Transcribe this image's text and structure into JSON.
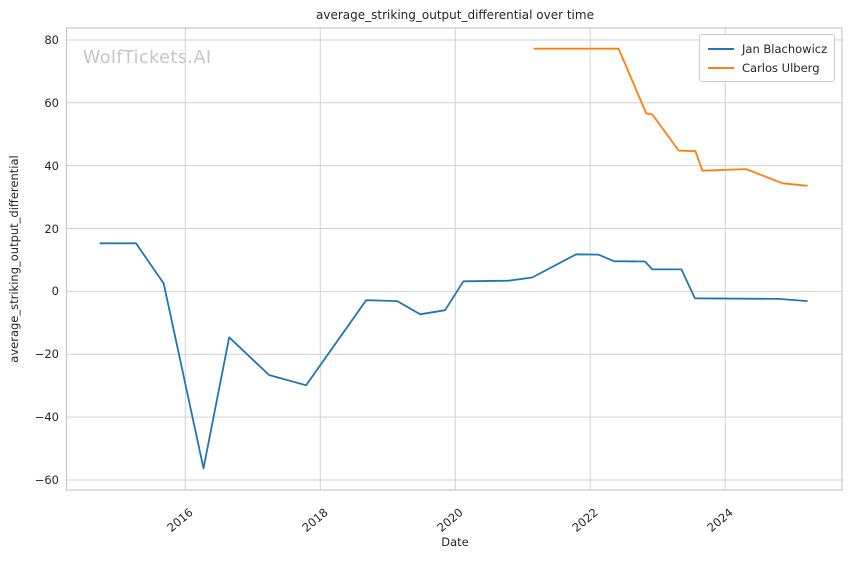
{
  "watermark": "WolfTickets.AI",
  "chart_data": {
    "type": "line",
    "title": "average_striking_output_differential over time",
    "xlabel": "Date",
    "ylabel": "average_striking_output_differential",
    "grid": true,
    "legend_position": "top-right",
    "background_color": "#ffffff",
    "grid_color": "#d2d2d2",
    "spine_color": "#c9c9c9",
    "text_color": "#262626",
    "watermark_color": "#c6c6c6",
    "x_range": [
      2014.24,
      2025.73
    ],
    "y_range": [
      -63.2,
      83.8
    ],
    "x_ticks": [
      {
        "value": 2016,
        "label": "2016"
      },
      {
        "value": 2018,
        "label": "2018"
      },
      {
        "value": 2020,
        "label": "2020"
      },
      {
        "value": 2022,
        "label": "2022"
      },
      {
        "value": 2024,
        "label": "2024"
      }
    ],
    "y_ticks": [
      {
        "value": 80,
        "label": "80"
      },
      {
        "value": 60,
        "label": "60"
      },
      {
        "value": 40,
        "label": "40"
      },
      {
        "value": 20,
        "label": "20"
      },
      {
        "value": 0,
        "label": "0"
      },
      {
        "value": -20,
        "label": "−20"
      },
      {
        "value": -40,
        "label": "−40"
      },
      {
        "value": -60,
        "label": "−60"
      }
    ],
    "series": [
      {
        "name": "Jan Blachowicz",
        "color": "#1f77b4",
        "points": [
          [
            2014.73,
            15.3
          ],
          [
            2015.27,
            15.3
          ],
          [
            2015.68,
            2.5
          ],
          [
            2016.27,
            -56.3
          ],
          [
            2016.65,
            -14.6
          ],
          [
            2017.24,
            -26.6
          ],
          [
            2017.79,
            -29.9
          ],
          [
            2018.68,
            -2.8
          ],
          [
            2019.14,
            -3.1
          ],
          [
            2019.48,
            -7.3
          ],
          [
            2019.85,
            -6.0
          ],
          [
            2020.12,
            3.2
          ],
          [
            2020.79,
            3.4
          ],
          [
            2021.14,
            4.4
          ],
          [
            2021.79,
            11.8
          ],
          [
            2022.12,
            11.7
          ],
          [
            2022.35,
            9.6
          ],
          [
            2022.81,
            9.5
          ],
          [
            2022.92,
            7.0
          ],
          [
            2023.35,
            7.0
          ],
          [
            2023.55,
            -2.2
          ],
          [
            2024.79,
            -2.4
          ],
          [
            2025.22,
            -3.1
          ]
        ]
      },
      {
        "name": "Carlos Ulberg",
        "color": "#ff7f0e",
        "points": [
          [
            2021.16,
            77.2
          ],
          [
            2022.12,
            77.2
          ],
          [
            2022.42,
            77.2
          ],
          [
            2022.83,
            56.6
          ],
          [
            2022.92,
            56.3
          ],
          [
            2023.31,
            44.8
          ],
          [
            2023.56,
            44.6
          ],
          [
            2023.66,
            38.4
          ],
          [
            2024.31,
            38.9
          ],
          [
            2024.85,
            34.4
          ],
          [
            2025.22,
            33.6
          ]
        ]
      }
    ]
  }
}
